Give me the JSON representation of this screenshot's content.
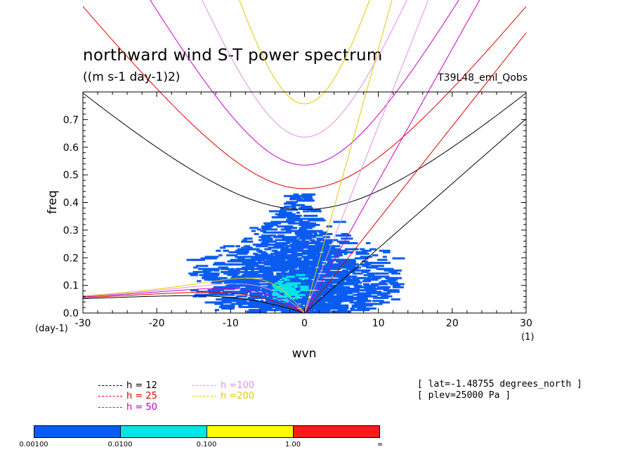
{
  "title": "northward wind S-T power spectrum",
  "units": "((m s-1 day-1)2)",
  "run": "T39L48_eml_Qobs",
  "info": [
    "[ lat=-1.48755 degrees_north ]",
    "[ plev=25000 Pa ]"
  ],
  "legend": [
    {
      "label": "h = 12",
      "color": "#000000"
    },
    {
      "label": "h = 25",
      "color": "#e00000"
    },
    {
      "label": "h = 50",
      "color": "#c800c8"
    },
    {
      "label": "h =100",
      "color": "#e28fe2"
    },
    {
      "label": "h =200",
      "color": "#e6c800"
    }
  ],
  "colorbar": {
    "labels": [
      "0.00100",
      "0.0100",
      "0.100",
      "1.00",
      "∞"
    ],
    "colors": [
      "#0a5cf0",
      "#00e6e6",
      "#ffff00",
      "#ff1a1a"
    ]
  },
  "chart_data": {
    "type": "heatmap",
    "title": "northward wind S-T power spectrum",
    "xlabel": "wvn",
    "ylabel": "freq",
    "x_units": "(1)",
    "y_units": "(day-1)",
    "xlim": [
      -30,
      30
    ],
    "ylim": [
      0.0,
      0.8
    ],
    "xticks": [
      -30,
      -20,
      -10,
      0,
      10,
      20,
      30
    ],
    "yticks": [
      0.0,
      0.1,
      0.2,
      0.3,
      0.4,
      0.5,
      0.6,
      0.7
    ],
    "curves": {
      "description": "shallow-water dispersion curves for equivalent depths h",
      "h": [
        12,
        25,
        50,
        100,
        200
      ],
      "family": [
        "n=1 equatorial Rossby",
        "n=1 inertia-gravity",
        "Kelvin"
      ]
    },
    "power_regions": [
      {
        "level": ">=0.001",
        "x": [
          -16,
          12
        ],
        "y": [
          0.0,
          0.43
        ],
        "peak_x": -2,
        "peak_y": 0.1
      },
      {
        "level": ">=0.01",
        "x": [
          -5,
          1
        ],
        "y": [
          0.04,
          0.14
        ],
        "peak_x": -2.5,
        "peak_y": 0.08
      }
    ]
  }
}
